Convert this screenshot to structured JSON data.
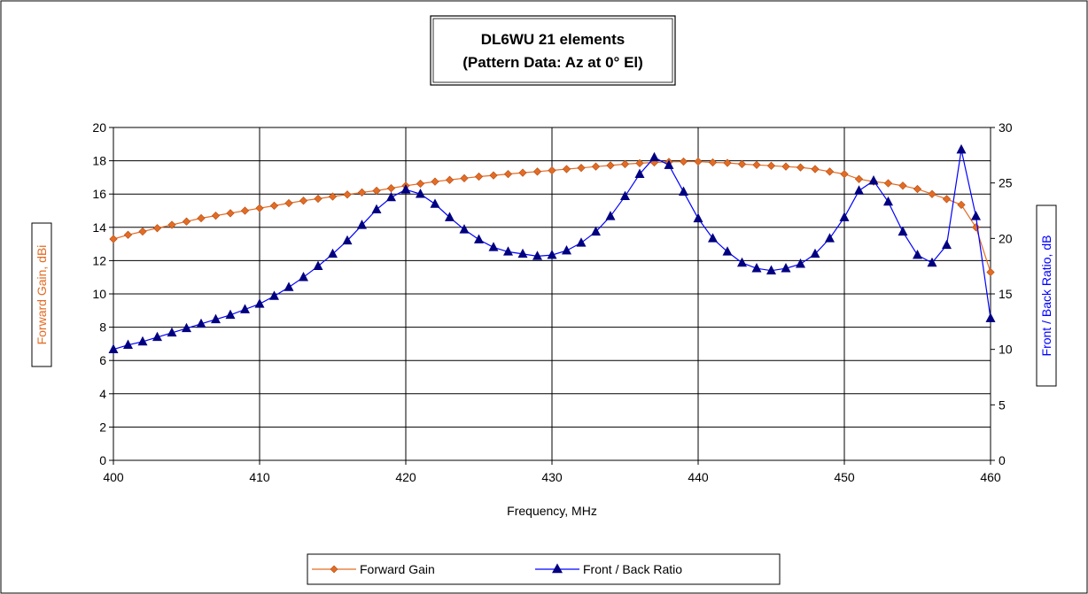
{
  "chart_data": {
    "type": "line",
    "title": "DL6WU 21 elements",
    "subtitle": "(Pattern Data: Az at 0° El)",
    "xlabel": "Frequency, MHz",
    "ylabel": "Forward Gain,  dBi",
    "y2label": "Front / Back Ratio,  dB",
    "xlim": [
      400,
      460
    ],
    "ylim": [
      0,
      20
    ],
    "y2lim": [
      0,
      30
    ],
    "x_ticks": [
      400,
      410,
      420,
      430,
      440,
      450,
      460
    ],
    "y_ticks": [
      0,
      2,
      4,
      6,
      8,
      10,
      12,
      14,
      16,
      18,
      20
    ],
    "y2_ticks": [
      0,
      5,
      10,
      15,
      20,
      25,
      30
    ],
    "grid": true,
    "legend_position": "bottom",
    "x": [
      400,
      401,
      402,
      403,
      404,
      405,
      406,
      407,
      408,
      409,
      410,
      411,
      412,
      413,
      414,
      415,
      416,
      417,
      418,
      419,
      420,
      421,
      422,
      423,
      424,
      425,
      426,
      427,
      428,
      429,
      430,
      431,
      432,
      433,
      434,
      435,
      436,
      437,
      438,
      439,
      440,
      441,
      442,
      443,
      444,
      445,
      446,
      447,
      448,
      449,
      450,
      451,
      452,
      453,
      454,
      455,
      456,
      457,
      458,
      459,
      460
    ],
    "series": [
      {
        "name": "Forward Gain",
        "axis": "left",
        "color": "#e36c25",
        "marker": "diamond",
        "values": [
          13.3,
          13.55,
          13.75,
          13.95,
          14.15,
          14.35,
          14.55,
          14.7,
          14.85,
          15.0,
          15.15,
          15.3,
          15.45,
          15.6,
          15.72,
          15.85,
          15.97,
          16.1,
          16.2,
          16.35,
          16.5,
          16.62,
          16.75,
          16.85,
          16.95,
          17.05,
          17.12,
          17.2,
          17.28,
          17.35,
          17.42,
          17.5,
          17.57,
          17.65,
          17.72,
          17.8,
          17.85,
          17.9,
          17.93,
          17.95,
          17.95,
          17.9,
          17.87,
          17.8,
          17.75,
          17.7,
          17.65,
          17.6,
          17.5,
          17.35,
          17.2,
          16.9,
          16.75,
          16.65,
          16.5,
          16.3,
          16.0,
          15.7,
          15.35,
          14.0,
          11.3
        ]
      },
      {
        "name": "Front / Back Ratio",
        "axis": "right",
        "color": "#0000ff",
        "marker": "triangle",
        "values": [
          10.0,
          10.4,
          10.7,
          11.1,
          11.5,
          11.9,
          12.3,
          12.7,
          13.1,
          13.6,
          14.1,
          14.8,
          15.6,
          16.5,
          17.5,
          18.6,
          19.8,
          21.2,
          22.6,
          23.7,
          24.4,
          24.0,
          23.1,
          21.9,
          20.8,
          19.9,
          19.2,
          18.8,
          18.6,
          18.4,
          18.5,
          18.9,
          19.6,
          20.6,
          22.0,
          23.8,
          25.8,
          27.3,
          26.6,
          24.2,
          21.8,
          20.0,
          18.8,
          17.8,
          17.3,
          17.1,
          17.3,
          17.7,
          18.6,
          20.0,
          21.9,
          24.3,
          25.2,
          23.3,
          20.6,
          18.5,
          17.8,
          19.4,
          28.0,
          22.0,
          12.8
        ]
      }
    ]
  }
}
